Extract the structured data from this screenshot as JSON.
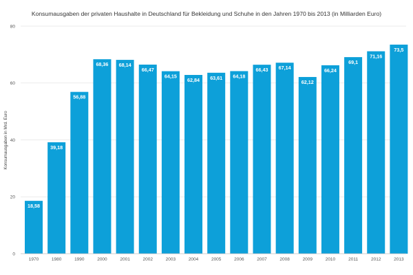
{
  "chart_data": {
    "type": "bar",
    "title": "Konsumausgaben der privaten Haushalte in Deutschland für Bekleidung und Schuhe in den Jahren 1970 bis 2013 (in Milliarden Euro)",
    "xlabel": "",
    "ylabel": "Konsumausgaben in Mrd. Euro",
    "categories": [
      "1970",
      "1980",
      "1990",
      "2000",
      "2001",
      "2002",
      "2003",
      "2004",
      "2005",
      "2006",
      "2007",
      "2008",
      "2009",
      "2010",
      "2011",
      "2012",
      "2013"
    ],
    "values": [
      18.58,
      39.18,
      56.88,
      68.36,
      68.14,
      66.47,
      64.15,
      62.84,
      63.61,
      64.18,
      66.43,
      67.14,
      62.12,
      66.24,
      69.1,
      71.16,
      73.5
    ],
    "data_labels": [
      "18,58",
      "39,18",
      "56,88",
      "68,36",
      "68,14",
      "66,47",
      "64,15",
      "62,84",
      "63,61",
      "64,18",
      "66,43",
      "67,14",
      "62,12",
      "66,24",
      "69,1",
      "71,16",
      "73,5"
    ],
    "ylim": [
      0,
      80
    ],
    "yticks": [
      0,
      20,
      40,
      60,
      80
    ],
    "ytick_labels": [
      "0",
      "20",
      "40",
      "60",
      "80"
    ],
    "grid": true,
    "legend": "none",
    "colors": {
      "bar": "#0da0d9",
      "grid": "#e4e4e4",
      "axis": "#bdbdbd",
      "label": "#ffffff"
    }
  }
}
